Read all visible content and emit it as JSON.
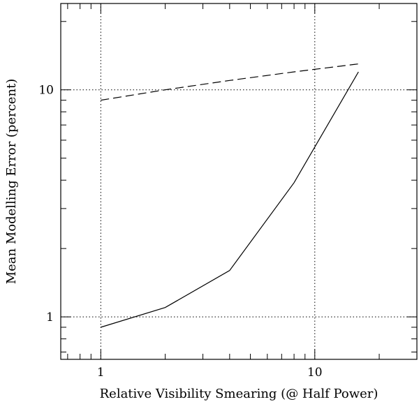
{
  "chart_data": {
    "type": "line",
    "title": "",
    "xlabel": "Relative Visibility Smearing (@ Half Power)",
    "ylabel": "Mean Modelling Error (percent)",
    "xscale": "log",
    "yscale": "log",
    "xlim": [
      0.65,
      30
    ],
    "ylim": [
      0.65,
      24
    ],
    "xticks": [
      {
        "value": 1,
        "label": "1"
      },
      {
        "value": 10,
        "label": "10"
      }
    ],
    "yticks": [
      {
        "value": 1,
        "label": "1"
      },
      {
        "value": 10,
        "label": "10"
      }
    ],
    "grid": {
      "x": [
        1,
        10
      ],
      "y": [
        1,
        10
      ],
      "style": "dotted"
    },
    "series": [
      {
        "name": "dashed",
        "style": "dashed",
        "x": [
          1,
          2,
          4,
          8,
          16
        ],
        "y": [
          9.0,
          10.0,
          11.0,
          12.0,
          13.0
        ]
      },
      {
        "name": "solid",
        "style": "solid",
        "x": [
          1,
          2,
          4,
          8,
          16
        ],
        "y": [
          0.9,
          1.1,
          1.6,
          3.9,
          12.0
        ]
      }
    ]
  }
}
